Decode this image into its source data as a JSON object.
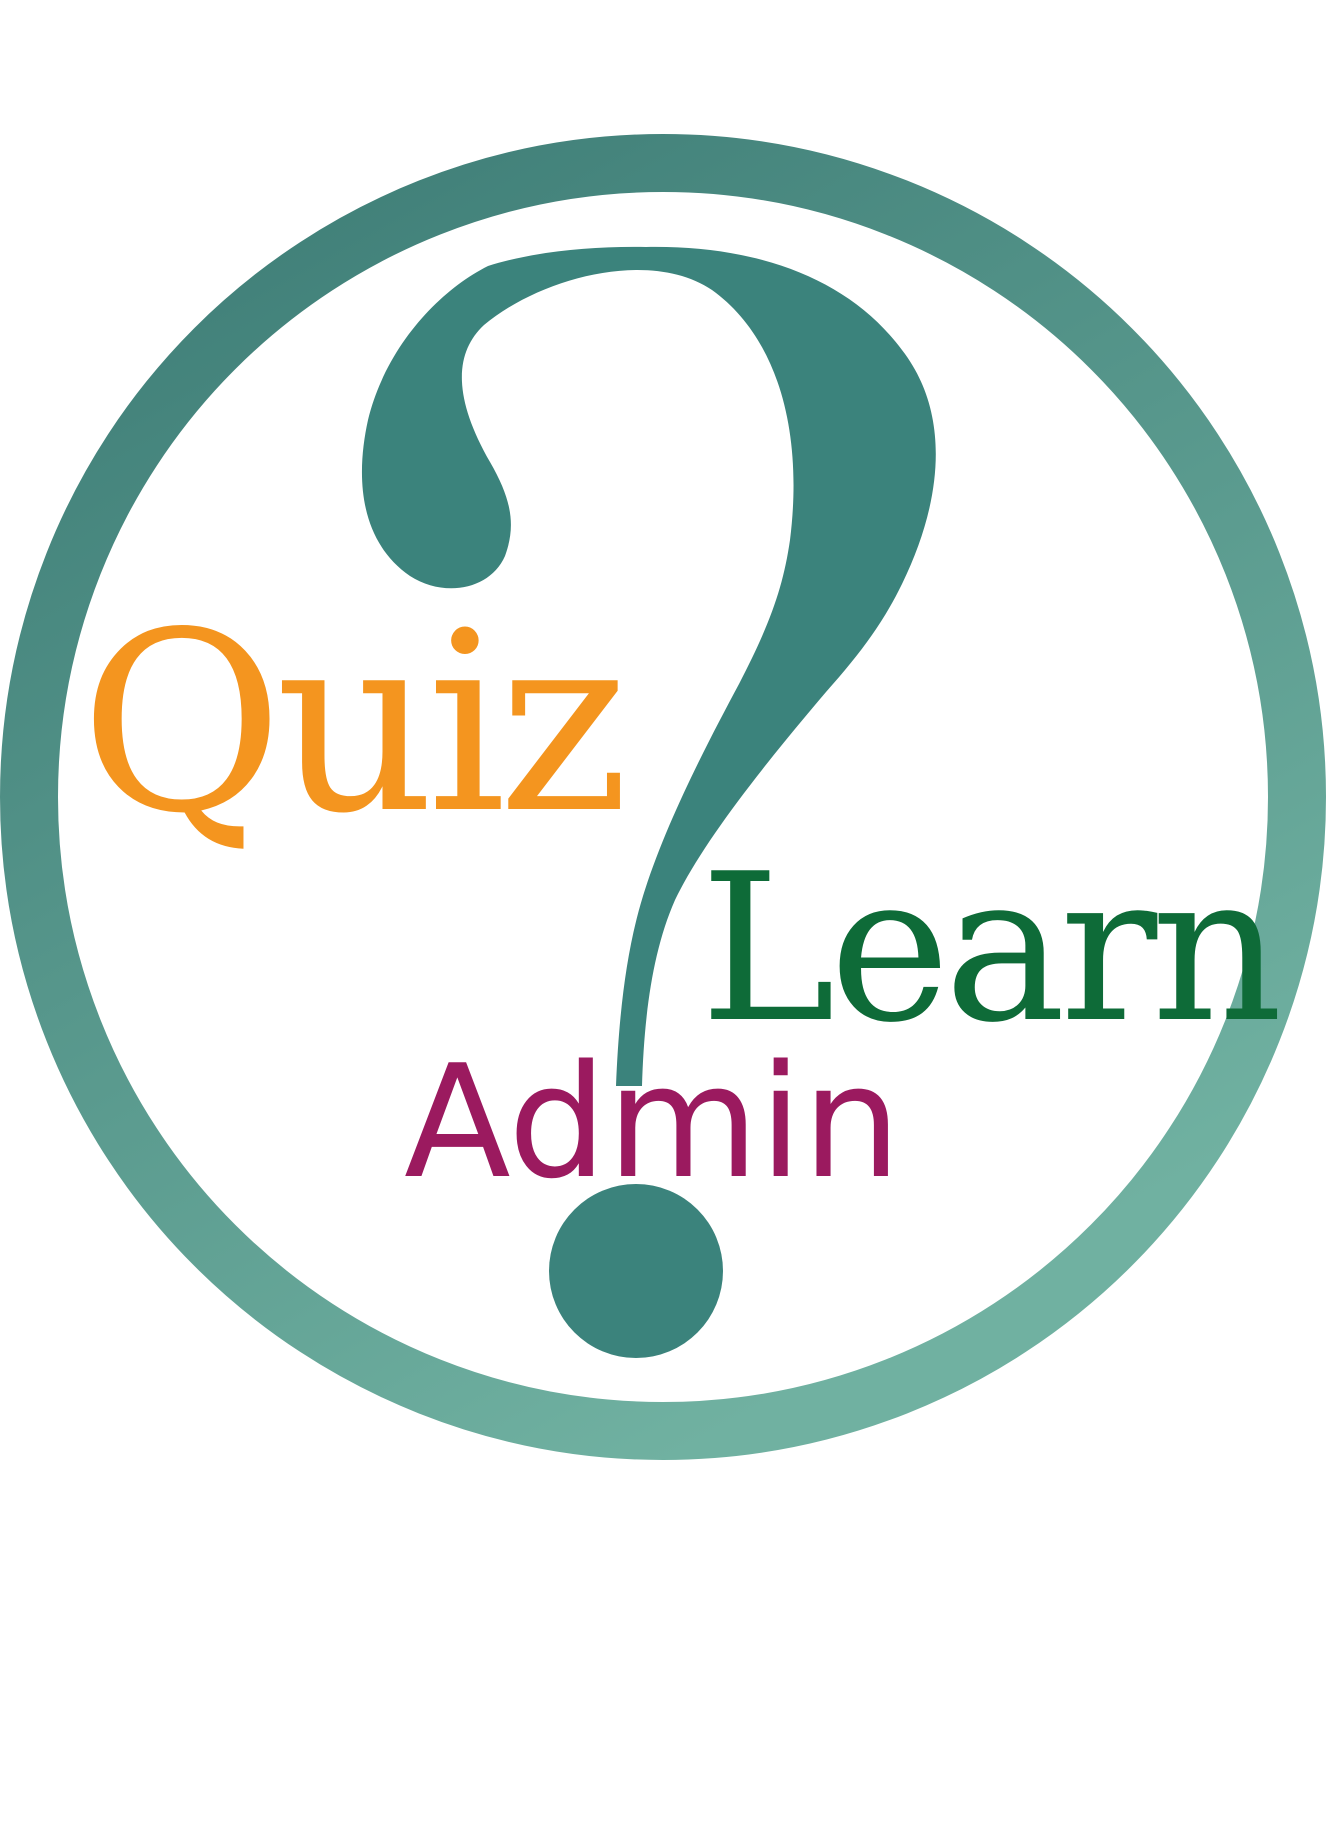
{
  "logo": {
    "words": {
      "quiz": "Quiz",
      "learn": "Learn",
      "admin": "Admin"
    },
    "colors": {
      "quiz": "#f4951f",
      "learn": "#0e6b38",
      "admin": "#9b1a5f",
      "question_mark": "#3b837c",
      "ring_top": "#3b7a74",
      "ring_bottom": "#70b1a1",
      "background": "#ffffff"
    },
    "icon": "question-mark-icon"
  }
}
